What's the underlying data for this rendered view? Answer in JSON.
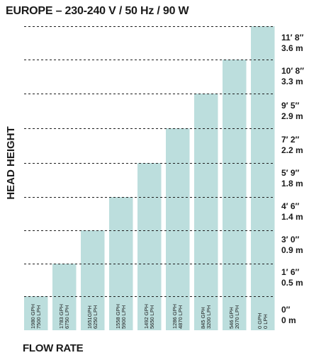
{
  "chart_data": {
    "type": "bar",
    "title": "EUROPE – 230-240 V / 50 Hz / 90 W",
    "xlabel": "FLOW RATE",
    "ylabel": "HEAD HEIGHT",
    "categories": [
      [
        "1980 GPH",
        "7500 LPH"
      ],
      [
        "1783 GPH",
        "6750 LPH"
      ],
      [
        "1651GPH",
        "6250 LPH"
      ],
      [
        "1558 GPH",
        "5900 LPH"
      ],
      [
        "1492 GPH",
        "5650 LPH"
      ],
      [
        "1286 GPH",
        "4870 LPH"
      ],
      [
        "845 GPH",
        "3200 LPH"
      ],
      [
        "546 GPH",
        "2070 LPH"
      ],
      [
        "0 GPH",
        "0 LPH"
      ]
    ],
    "values": [
      0,
      0.5,
      0.9,
      1.4,
      1.8,
      2.2,
      2.9,
      3.3,
      3.6
    ],
    "y_ticks": [
      {
        "ft": "0″",
        "m": "0 m"
      },
      {
        "ft": "1′ 6″",
        "m": "0.5 m"
      },
      {
        "ft": "3′ 0″",
        "m": "0.9 m"
      },
      {
        "ft": "4′ 6″",
        "m": "1.4 m"
      },
      {
        "ft": "5′ 9″",
        "m": "1.8 m"
      },
      {
        "ft": "7′ 2″",
        "m": "2.2 m"
      },
      {
        "ft": "9′ 5″",
        "m": "2.9 m"
      },
      {
        "ft": "10′ 8″",
        "m": "3.3 m"
      },
      {
        "ft": "11′ 8″",
        "m": "3.6 m"
      }
    ],
    "grid": true,
    "bar_color": "#bcdedd"
  }
}
